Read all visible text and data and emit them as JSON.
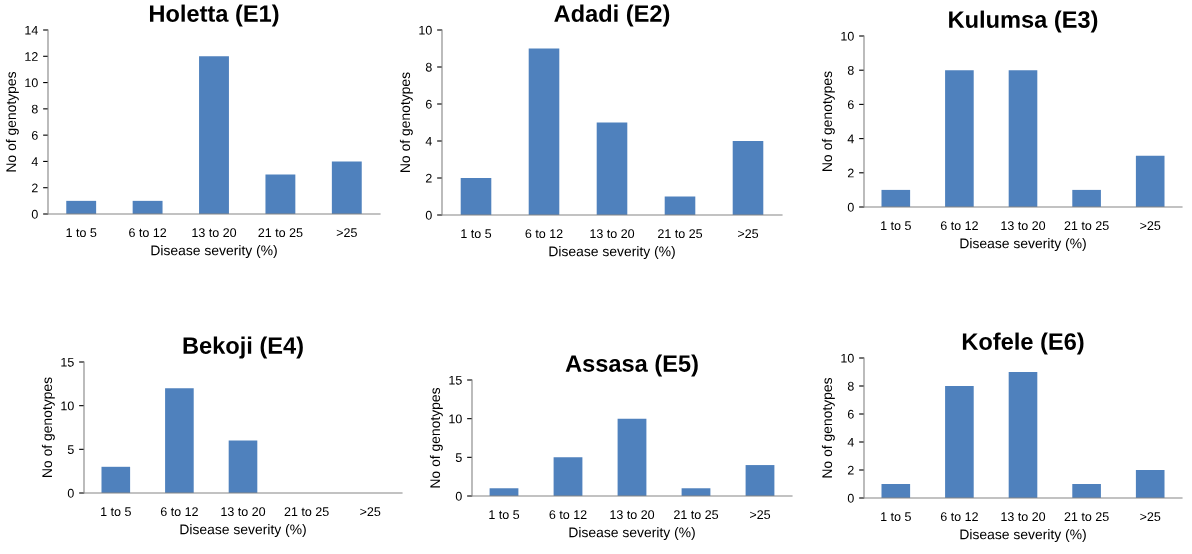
{
  "chart_data": [
    {
      "type": "bar",
      "title": "Holetta (E1)",
      "xlabel": "Disease severity (%)",
      "ylabel": "No of genotypes",
      "categories": [
        "1 to 5",
        "6 to 12",
        "13 to 20",
        "21 to 25",
        ">25"
      ],
      "values": [
        1,
        1,
        12,
        3,
        4
      ],
      "color": "#4f81bd",
      "ylim": [
        0,
        14
      ],
      "yticks": [
        0,
        2,
        4,
        6,
        8,
        10,
        12,
        14
      ],
      "grid": false,
      "legend": false
    },
    {
      "type": "bar",
      "title": "Adadi (E2)",
      "xlabel": "Disease severity (%)",
      "ylabel": "No of genotypes",
      "categories": [
        "1 to 5",
        "6 to 12",
        "13 to 20",
        "21 to 25",
        ">25"
      ],
      "values": [
        2,
        9,
        5,
        1,
        4
      ],
      "color": "#4f81bd",
      "ylim": [
        0,
        10
      ],
      "yticks": [
        0,
        2,
        4,
        6,
        8,
        10
      ],
      "grid": false,
      "legend": false
    },
    {
      "type": "bar",
      "title": "Kulumsa (E3)",
      "xlabel": "Disease severity (%)",
      "ylabel": "No of genotypes",
      "categories": [
        "1 to 5",
        "6 to 12",
        "13 to 20",
        "21 to 25",
        ">25"
      ],
      "values": [
        1,
        8,
        8,
        1,
        3
      ],
      "color": "#4f81bd",
      "ylim": [
        0,
        10
      ],
      "yticks": [
        0,
        2,
        4,
        6,
        8,
        10
      ],
      "grid": false,
      "legend": false
    },
    {
      "type": "bar",
      "title": "Bekoji (E4)",
      "xlabel": "Disease severity (%)",
      "ylabel": "No of genotypes",
      "categories": [
        "1 to 5",
        "6 to 12",
        "13 to 20",
        "21 to 25",
        ">25"
      ],
      "values": [
        3,
        12,
        6,
        0,
        0
      ],
      "color": "#4f81bd",
      "ylim": [
        0,
        15
      ],
      "yticks": [
        0,
        5,
        10,
        15
      ],
      "grid": false,
      "legend": false
    },
    {
      "type": "bar",
      "title": "Assasa (E5)",
      "xlabel": "Disease severity (%)",
      "ylabel": "No of genotypes",
      "categories": [
        "1 to 5",
        "6 to 12",
        "13 to 20",
        "21 to 25",
        ">25"
      ],
      "values": [
        1,
        5,
        10,
        1,
        4
      ],
      "color": "#4f81bd",
      "ylim": [
        0,
        15
      ],
      "yticks": [
        0,
        5,
        10,
        15
      ],
      "grid": false,
      "legend": false
    },
    {
      "type": "bar",
      "title": "Kofele (E6)",
      "xlabel": "Disease severity (%)",
      "ylabel": "No of genotypes",
      "categories": [
        "1 to 5",
        "6 to 12",
        "13 to 20",
        "21 to 25",
        ">25"
      ],
      "values": [
        1,
        8,
        9,
        1,
        2
      ],
      "color": "#4f81bd",
      "ylim": [
        0,
        10
      ],
      "yticks": [
        0,
        2,
        4,
        6,
        8,
        10
      ],
      "grid": false,
      "legend": false
    }
  ]
}
